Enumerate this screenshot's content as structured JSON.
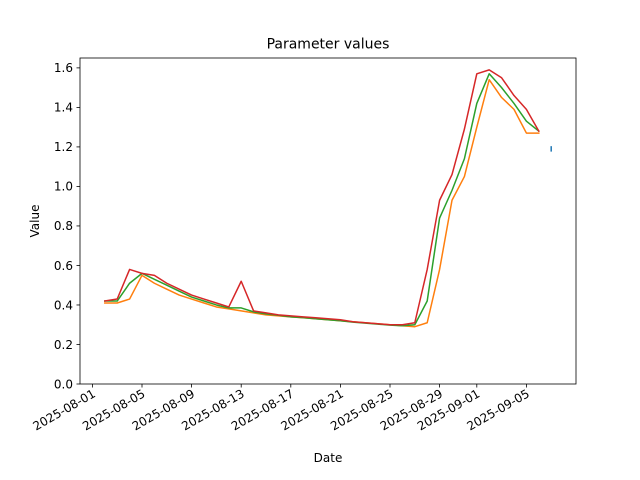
{
  "chart_data": {
    "type": "line",
    "title": "Parameter values",
    "xlabel": "Date",
    "ylabel": "Value",
    "xlim": [
      "2025-07-31",
      "2025-09-09"
    ],
    "ylim": [
      0.0,
      1.65
    ],
    "yticks": [
      "0.0",
      "0.2",
      "0.4",
      "0.6",
      "0.8",
      "1.0",
      "1.2",
      "1.4",
      "1.6"
    ],
    "ytick_values": [
      0.0,
      0.2,
      0.4,
      0.6,
      0.8,
      1.0,
      1.2,
      1.4,
      1.6
    ],
    "xticks": [
      "2025-08-01",
      "2025-08-05",
      "2025-08-09",
      "2025-08-13",
      "2025-08-17",
      "2025-08-21",
      "2025-08-25",
      "2025-08-29",
      "2025-09-01",
      "2025-09-05"
    ],
    "grid": false,
    "legend": false,
    "series": [
      {
        "color": "#1f77b4",
        "x": [
          "2025-09-07",
          "2025-09-07"
        ],
        "y": [
          1.18,
          1.2
        ]
      },
      {
        "color": "#ff7f0e",
        "x": [
          "2025-08-02",
          "2025-08-03",
          "2025-08-04",
          "2025-08-05",
          "2025-08-06",
          "2025-08-07",
          "2025-08-08",
          "2025-08-09",
          "2025-08-10",
          "2025-08-11",
          "2025-08-12",
          "2025-08-13",
          "2025-08-14",
          "2025-08-15",
          "2025-08-16",
          "2025-08-17",
          "2025-08-18",
          "2025-08-19",
          "2025-08-20",
          "2025-08-21",
          "2025-08-22",
          "2025-08-23",
          "2025-08-24",
          "2025-08-25",
          "2025-08-26",
          "2025-08-27",
          "2025-08-28",
          "2025-08-29",
          "2025-08-30",
          "2025-08-31",
          "2025-09-01",
          "2025-09-02",
          "2025-09-03",
          "2025-09-04",
          "2025-09-05",
          "2025-09-06"
        ],
        "y": [
          0.41,
          0.41,
          0.43,
          0.55,
          0.51,
          0.48,
          0.45,
          0.43,
          0.41,
          0.39,
          0.38,
          0.37,
          0.36,
          0.35,
          0.345,
          0.34,
          0.335,
          0.33,
          0.325,
          0.32,
          0.315,
          0.31,
          0.305,
          0.3,
          0.295,
          0.29,
          0.31,
          0.58,
          0.93,
          1.05,
          1.3,
          1.54,
          1.45,
          1.39,
          1.27,
          1.27
        ]
      },
      {
        "color": "#2ca02c",
        "x": [
          "2025-08-02",
          "2025-08-03",
          "2025-08-04",
          "2025-08-05",
          "2025-08-06",
          "2025-08-07",
          "2025-08-08",
          "2025-08-09",
          "2025-08-10",
          "2025-08-11",
          "2025-08-12",
          "2025-08-13",
          "2025-08-14",
          "2025-08-15",
          "2025-08-16",
          "2025-08-17",
          "2025-08-18",
          "2025-08-19",
          "2025-08-20",
          "2025-08-21",
          "2025-08-22",
          "2025-08-23",
          "2025-08-24",
          "2025-08-25",
          "2025-08-26",
          "2025-08-27",
          "2025-08-28",
          "2025-08-29",
          "2025-08-30",
          "2025-08-31",
          "2025-09-01",
          "2025-09-02",
          "2025-09-03",
          "2025-09-04",
          "2025-09-05",
          "2025-09-06"
        ],
        "y": [
          0.42,
          0.42,
          0.51,
          0.56,
          0.53,
          0.5,
          0.47,
          0.44,
          0.42,
          0.4,
          0.385,
          0.385,
          0.365,
          0.355,
          0.348,
          0.34,
          0.336,
          0.33,
          0.325,
          0.32,
          0.313,
          0.308,
          0.303,
          0.298,
          0.295,
          0.3,
          0.42,
          0.84,
          0.98,
          1.14,
          1.42,
          1.57,
          1.5,
          1.42,
          1.33,
          1.28
        ]
      },
      {
        "color": "#d62728",
        "x": [
          "2025-08-02",
          "2025-08-03",
          "2025-08-04",
          "2025-08-05",
          "2025-08-06",
          "2025-08-07",
          "2025-08-08",
          "2025-08-09",
          "2025-08-10",
          "2025-08-11",
          "2025-08-12",
          "2025-08-13",
          "2025-08-14",
          "2025-08-15",
          "2025-08-16",
          "2025-08-17",
          "2025-08-18",
          "2025-08-19",
          "2025-08-20",
          "2025-08-21",
          "2025-08-22",
          "2025-08-23",
          "2025-08-24",
          "2025-08-25",
          "2025-08-26",
          "2025-08-27",
          "2025-08-28",
          "2025-08-29",
          "2025-08-30",
          "2025-08-31",
          "2025-09-01",
          "2025-09-02",
          "2025-09-03",
          "2025-09-04",
          "2025-09-05",
          "2025-09-06"
        ],
        "y": [
          0.42,
          0.43,
          0.58,
          0.56,
          0.55,
          0.51,
          0.48,
          0.45,
          0.43,
          0.41,
          0.39,
          0.52,
          0.37,
          0.36,
          0.35,
          0.345,
          0.34,
          0.335,
          0.33,
          0.325,
          0.315,
          0.31,
          0.305,
          0.3,
          0.3,
          0.31,
          0.58,
          0.93,
          1.06,
          1.29,
          1.57,
          1.59,
          1.55,
          1.46,
          1.39,
          1.28
        ]
      }
    ]
  }
}
